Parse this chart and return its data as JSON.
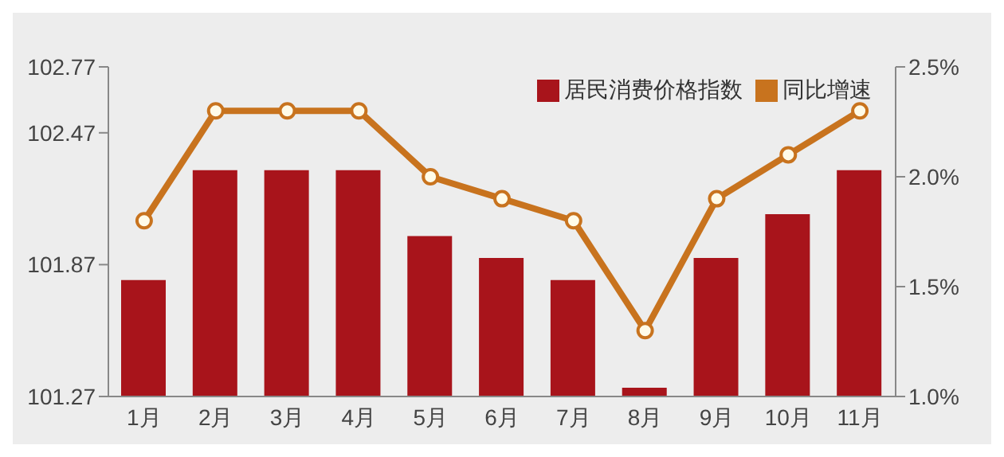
{
  "chart_data": {
    "type": "bar",
    "categories": [
      "1月",
      "2月",
      "3月",
      "4月",
      "5月",
      "6月",
      "7月",
      "8月",
      "9月",
      "10月",
      "11月"
    ],
    "series": [
      {
        "name": "居民消费价格指数",
        "color": "#a8141b",
        "values": [
          101.8,
          102.3,
          102.3,
          102.3,
          102.0,
          101.9,
          101.8,
          101.31,
          101.9,
          102.1,
          102.3
        ]
      },
      {
        "name": "同比增速",
        "type": "line",
        "axis": "y2",
        "color": "#c8731e",
        "values": [
          1.8,
          2.3,
          2.3,
          2.3,
          2.0,
          1.9,
          1.8,
          1.3,
          1.9,
          2.1,
          2.3
        ]
      }
    ],
    "ylim": [
      101.27,
      102.77
    ],
    "yticks": [
      101.27,
      101.87,
      102.47,
      102.77
    ],
    "y2lim": [
      1.0,
      2.5
    ],
    "y2ticks": [
      {
        "value": 1.0,
        "label": "1.0%"
      },
      {
        "value": 1.5,
        "label": "1.5%"
      },
      {
        "value": 2.0,
        "label": "2.0%"
      },
      {
        "value": 2.5,
        "label": "2.5%"
      }
    ],
    "legend": "top right",
    "marker": "circle",
    "grid": false
  }
}
